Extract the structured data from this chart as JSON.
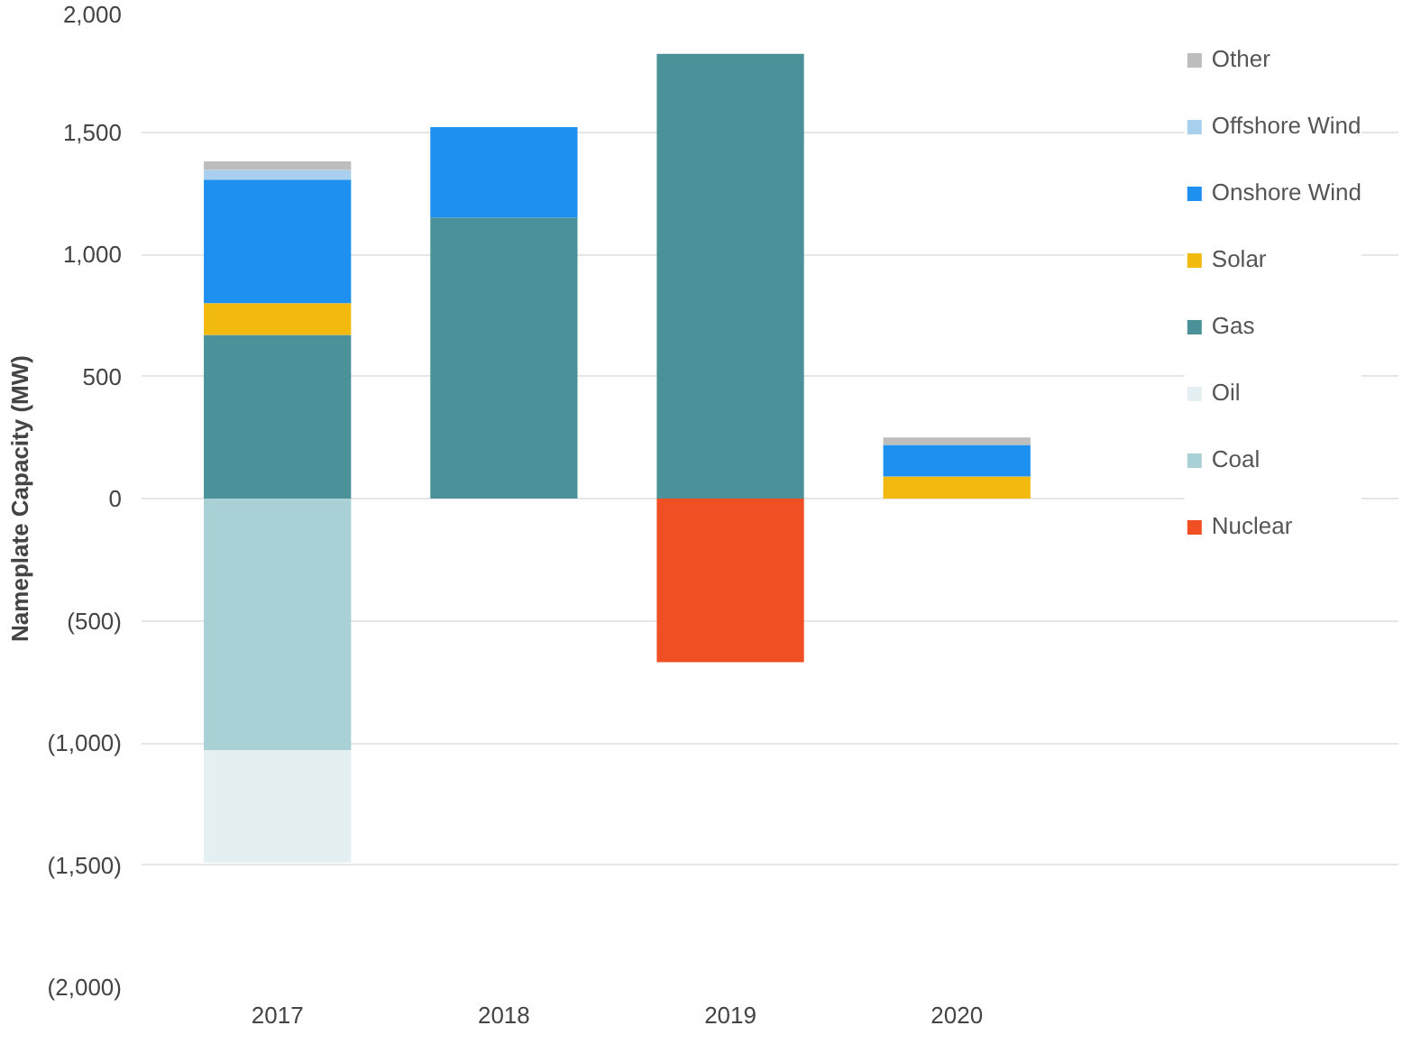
{
  "chart_data": {
    "type": "bar",
    "stacked": true,
    "ylabel": "Nameplate Capacity (MW)",
    "categories": [
      "2017",
      "2018",
      "2019",
      "2020"
    ],
    "series": [
      {
        "name": "Gas",
        "color": "#4a9199",
        "values": [
          670,
          1150,
          1820,
          0
        ]
      },
      {
        "name": "Solar",
        "color": "#f2b90f",
        "values": [
          130,
          0,
          0,
          90
        ]
      },
      {
        "name": "Onshore Wind",
        "color": "#1e90f0",
        "values": [
          505,
          370,
          0,
          130
        ]
      },
      {
        "name": "Offshore Wind",
        "color": "#a9cfee",
        "values": [
          40,
          0,
          0,
          0
        ]
      },
      {
        "name": "Other",
        "color": "#bdbdbd",
        "values": [
          35,
          0,
          0,
          30
        ]
      },
      {
        "name": "Nuclear",
        "color": "#f04e23",
        "values": [
          0,
          0,
          -670,
          0
        ]
      },
      {
        "name": "Coal",
        "color": "#a9d0d5",
        "values": [
          -1030,
          0,
          0,
          0
        ]
      },
      {
        "name": "Oil",
        "color": "#e4eff1",
        "values": [
          -460,
          0,
          0,
          0
        ]
      }
    ],
    "ylim": [
      -2000,
      2000
    ],
    "yticks": [
      {
        "value": -2000,
        "label": "(2,000)"
      },
      {
        "value": -1500,
        "label": "(1,500)"
      },
      {
        "value": -1000,
        "label": "(1,000)"
      },
      {
        "value": -500,
        "label": "(500)"
      },
      0,
      {
        "value": 500,
        "label": "500"
      },
      {
        "value": 1000,
        "label": "1,000"
      },
      {
        "value": 1500,
        "label": "1,500"
      },
      {
        "value": 2000,
        "label": "2,000"
      }
    ],
    "grid": "y",
    "legend": "right"
  }
}
